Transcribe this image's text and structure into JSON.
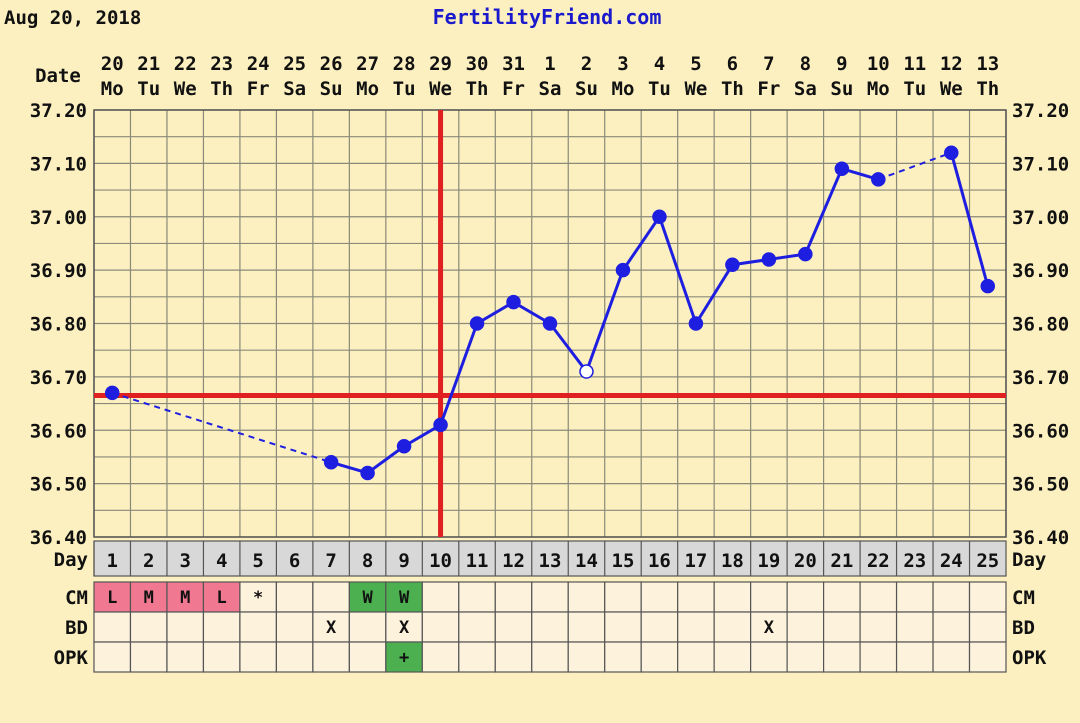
{
  "header": {
    "date_text": "Aug 20, 2018",
    "site": "FertilityFriend.com"
  },
  "colors": {
    "background": "#fcf0c0",
    "grid": "#8a8a7a",
    "series": "#1e1ee0",
    "coverline": "#e02020",
    "menstruation": "#f07890",
    "fertile_cm": "#4caf50",
    "day_band": "#d8d8d8",
    "row_fill": "#fdf2dc"
  },
  "chart_data": {
    "type": "line",
    "date_label": "Date",
    "dates": [
      "20",
      "21",
      "22",
      "23",
      "24",
      "25",
      "26",
      "27",
      "28",
      "29",
      "30",
      "31",
      "1",
      "2",
      "3",
      "4",
      "5",
      "6",
      "7",
      "8",
      "9",
      "10",
      "11",
      "12",
      "13"
    ],
    "weekdays": [
      "Mo",
      "Tu",
      "We",
      "Th",
      "Fr",
      "Sa",
      "Su",
      "Mo",
      "Tu",
      "We",
      "Th",
      "Fr",
      "Sa",
      "Su",
      "Mo",
      "Tu",
      "We",
      "Th",
      "Fr",
      "Sa",
      "Su",
      "Mo",
      "Tu",
      "We",
      "Th"
    ],
    "cycle_days": [
      "1",
      "2",
      "3",
      "4",
      "5",
      "6",
      "7",
      "8",
      "9",
      "10",
      "11",
      "12",
      "13",
      "14",
      "15",
      "16",
      "17",
      "18",
      "19",
      "20",
      "21",
      "22",
      "23",
      "24",
      "25"
    ],
    "y_ticks": [
      "37.20",
      "37.10",
      "37.00",
      "36.90",
      "36.80",
      "36.70",
      "36.60",
      "36.50",
      "36.40"
    ],
    "ylim": [
      36.4,
      37.2
    ],
    "temperatures": [
      36.67,
      null,
      null,
      null,
      null,
      null,
      36.54,
      36.52,
      36.57,
      36.61,
      36.8,
      36.84,
      36.8,
      36.71,
      36.9,
      37.0,
      36.8,
      36.91,
      36.92,
      36.93,
      37.09,
      37.07,
      null,
      37.12,
      36.87
    ],
    "open_points": [
      14
    ],
    "coverline": 36.665,
    "ovulation_day": 10,
    "grid": true,
    "rows": [
      {
        "label": "Day"
      },
      {
        "label": "CM",
        "values": [
          "L",
          "M",
          "M",
          "L",
          "*",
          "",
          "",
          "W",
          "W",
          "",
          "",
          "",
          "",
          "",
          "",
          "",
          "",
          "",
          "",
          "",
          "",
          "",
          "",
          "",
          ""
        ]
      },
      {
        "label": "BD",
        "values": [
          "",
          "",
          "",
          "",
          "",
          "",
          "X",
          "",
          "X",
          "",
          "",
          "",
          "",
          "",
          "",
          "",
          "",
          "",
          "X",
          "",
          "",
          "",
          "",
          "",
          ""
        ]
      },
      {
        "label": "OPK",
        "values": [
          "",
          "",
          "",
          "",
          "",
          "",
          "",
          "",
          "+",
          "",
          "",
          "",
          "",
          "",
          "",
          "",
          "",
          "",
          "",
          "",
          "",
          "",
          "",
          "",
          ""
        ]
      }
    ]
  }
}
